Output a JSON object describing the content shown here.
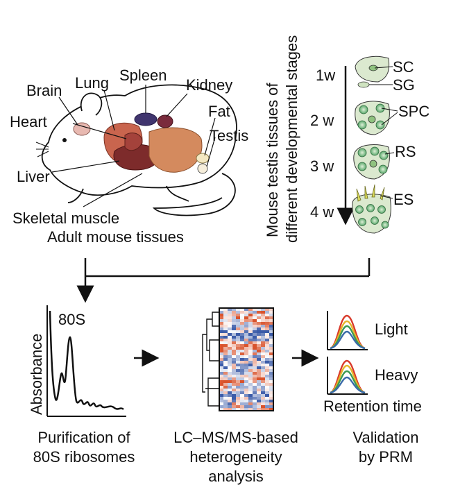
{
  "mouse_panel": {
    "organs": {
      "brain": "Brain",
      "lung": "Lung",
      "spleen": "Spleen",
      "kidney": "Kidney",
      "heart": "Heart",
      "fat": "Fat",
      "testis": "Testis",
      "liver": "Liver",
      "skeletal_muscle": "Skeletal muscle"
    },
    "caption": "Adult mouse tissues"
  },
  "testis_panel": {
    "vertical_title_line1": "Mouse testis tissues of",
    "vertical_title_line2": "different developmental stages",
    "stages": [
      "1w",
      "2 w",
      "3 w",
      "4 w"
    ],
    "cells": {
      "sc": "SC",
      "sg": "SG",
      "spc": "SPC",
      "rs": "RS",
      "es": "ES"
    }
  },
  "workflow": {
    "absorbance_label": "Absorbance",
    "peak_label": "80S",
    "step1_line1": "Purification of",
    "step1_line2": "80S ribosomes",
    "step2_line1": "LC–MS/MS-based",
    "step2_line2": "heterogeneity",
    "step2_line3": "analysis",
    "light_label": "Light",
    "heavy_label": "Heavy",
    "retention_label": "Retention time",
    "step3_line1": "Validation",
    "step3_line2": "by PRM"
  },
  "colors": {
    "heatmap_red": "#d9532c",
    "heatmap_blue": "#3b5ba8",
    "peak_red": "#d93a2b",
    "peak_yellow": "#e6b62a",
    "peak_green": "#3c9a52",
    "peak_blue": "#3a6aa8",
    "tissue_green": "#cfe3c0"
  }
}
